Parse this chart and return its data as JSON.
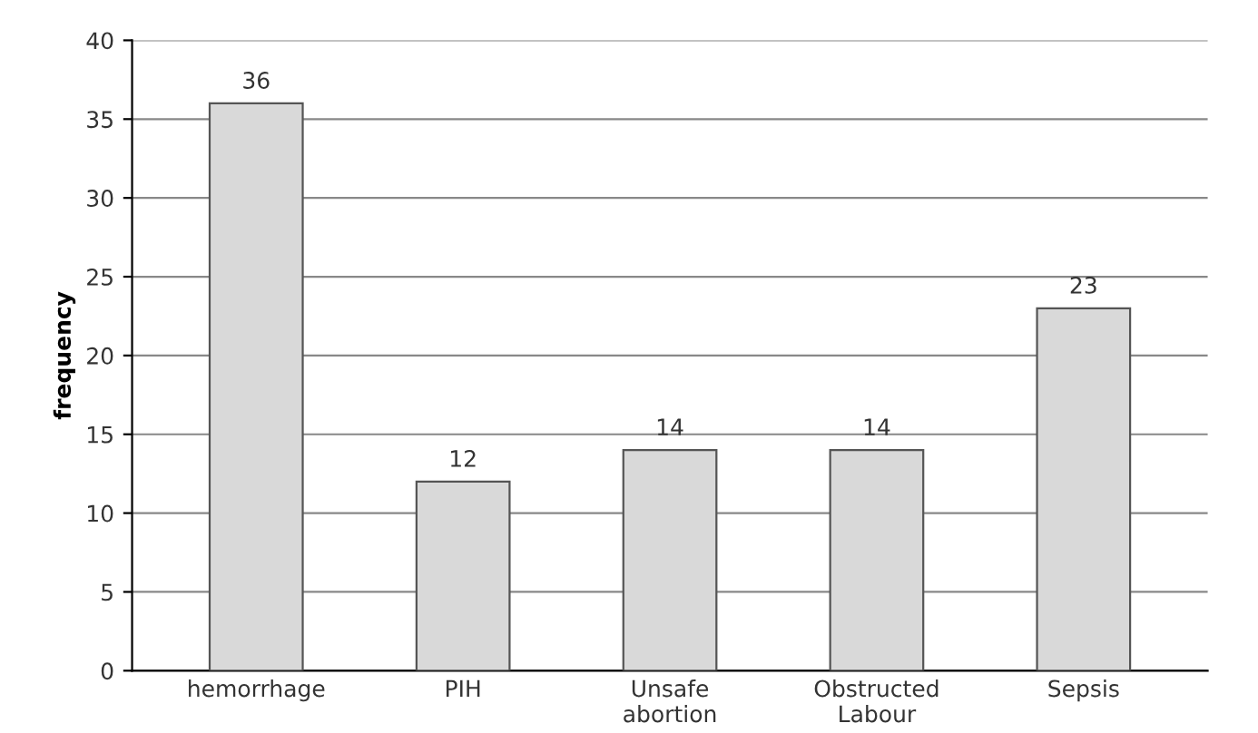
{
  "chart_data": {
    "type": "bar",
    "ylabel": "frequency",
    "categories": [
      "hemorrhage",
      "PIH",
      "Unsafe\nabortion",
      "Obstructed\nLabour",
      "Sepsis"
    ],
    "values": [
      36,
      12,
      14,
      14,
      23
    ],
    "color": "#d9d9d9",
    "ylim": [
      0,
      40
    ],
    "yticks": [
      0,
      5,
      10,
      15,
      20,
      25,
      30,
      35,
      40
    ],
    "grid": "y",
    "data_labels": true,
    "legend": false
  }
}
